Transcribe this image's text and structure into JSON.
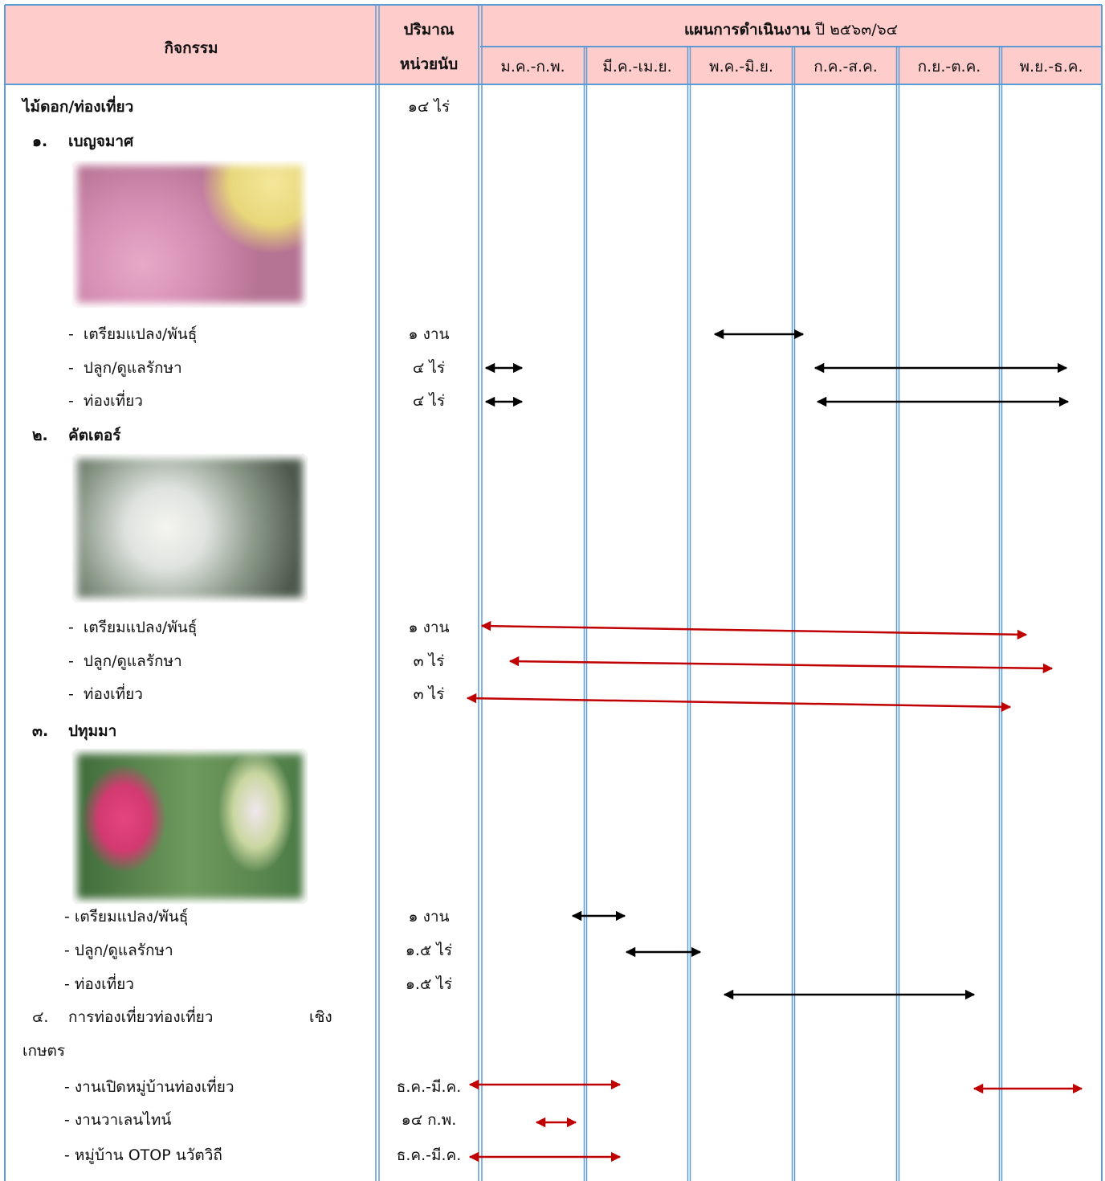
{
  "header": {
    "activity": "กิจกรรม",
    "quantity": "ปริมาณ",
    "unit": "หน่วยนับ",
    "plan": "แผนการดำเนินงาน",
    "year": "ปี ๒๕๖๓/๖๔",
    "months": [
      "ม.ค.-ก.พ.",
      "มี.ค.-เม.ย.",
      "พ.ค.-มิ.ย.",
      "ก.ค.-ส.ค.",
      "ก.ย.-ต.ค.",
      "พ.ย.-ธ.ค."
    ]
  },
  "rows": [
    {
      "label": "ไม้ดอก/ท่องเที่ยว",
      "quantity": "๑๔ ไร่"
    },
    {
      "number": "๑.",
      "label": "เบญจมาศ"
    },
    {
      "label": "-  เตรียมแปลง/พันธุ์",
      "quantity": "๑ งาน"
    },
    {
      "label": "-  ปลูก/ดูแลรักษา",
      "quantity": "๔ ไร่"
    },
    {
      "label": "-  ท่องเที่ยว",
      "quantity": "๔ ไร่"
    },
    {
      "number": "๒.",
      "label": "คัตเตอร์"
    },
    {
      "label": "-  เตรียมแปลง/พันธุ์",
      "quantity": "๑ งาน"
    },
    {
      "label": "-  ปลูก/ดูแลรักษา",
      "quantity": "๓ ไร่"
    },
    {
      "label": "-  ท่องเที่ยว",
      "quantity": "๓ ไร่"
    },
    {
      "number": "๓.",
      "label": "ปทุมมา"
    },
    {
      "label": "- เตรียมแปลง/พันธุ์",
      "quantity": "๑ งาน"
    },
    {
      "label": "- ปลูก/ดูแลรักษา",
      "quantity": "๑.๕ ไร่"
    },
    {
      "label": "- ท่องเที่ยว",
      "quantity": "๑.๕ ไร่"
    },
    {
      "number": "๔.",
      "label": "การท่องเที่ยวท่องเที่ยว",
      "label_end": "เชิง"
    },
    {
      "label": "เกษตร"
    },
    {
      "label": "- งานเปิดหมู่บ้านท่องเที่ยว",
      "quantity": "ธ.ค.-มี.ค."
    },
    {
      "label": "- งานวาเลนไทน์",
      "quantity": "๑๔ ก.พ."
    },
    {
      "label": "- หมู่บ้าน OTOP นวัตวิถี",
      "quantity": "ธ.ค.-มี.ค."
    }
  ]
}
